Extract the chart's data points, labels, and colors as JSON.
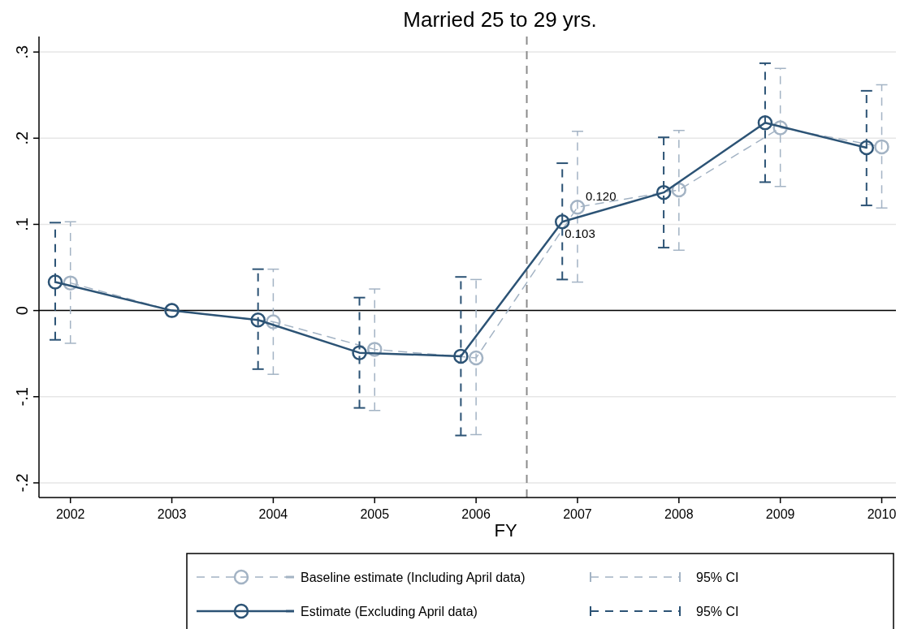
{
  "chart_data": {
    "type": "line",
    "title": "Married 25 to 29 yrs.",
    "xlabel": "FY",
    "xlim": [
      2001.69,
      2010.14
    ],
    "xticks": [
      2002,
      2003,
      2004,
      2005,
      2006,
      2007,
      2008,
      2009,
      2010
    ],
    "ylim": [
      -0.217,
      0.318
    ],
    "yticks": [
      {
        "value": 0.3,
        "label": ".3"
      },
      {
        "value": 0.2,
        "label": ".2"
      },
      {
        "value": 0.1,
        "label": ".1"
      },
      {
        "value": 0,
        "label": "0"
      },
      {
        "value": -0.1,
        "label": "-.1"
      },
      {
        "value": -0.2,
        "label": "-.2"
      }
    ],
    "grid": "y",
    "legend": "bottom",
    "marker": "circle",
    "ref_lines": [
      {
        "axis": "y",
        "value": 0,
        "color": "#000000",
        "line_style": "solid"
      },
      {
        "axis": "x",
        "value": 2006.5,
        "color": "#8c8c8c",
        "line_style": "dashed"
      }
    ],
    "annotations": [
      {
        "text": "0.120",
        "x": 2007,
        "y": 0.12
      },
      {
        "text": "0.103",
        "x": 2006.85,
        "y": 0.103
      },
      "95% CI",
      "95% CI"
    ],
    "series": [
      {
        "name": "Baseline estimate (Including April data)",
        "color": "#a3b3c4",
        "line_style": "dashed",
        "x": [
          2002,
          2003,
          2004,
          2005,
          2006,
          2007,
          2008,
          2009,
          2010
        ],
        "values": [
          0.032,
          0,
          -0.013,
          -0.045,
          -0.055,
          0.12,
          0.14,
          0.212,
          0.19
        ],
        "errors": [
          [
            -0.038,
            0.103
          ],
          null,
          [
            -0.074,
            0.048
          ],
          [
            -0.116,
            0.025
          ],
          [
            -0.144,
            0.036
          ],
          [
            0.033,
            0.208
          ],
          [
            0.07,
            0.209
          ],
          [
            0.144,
            0.281
          ],
          [
            0.119,
            0.262
          ]
        ]
      },
      {
        "name": "Estimate (Excluding April data)",
        "color": "#2c5375",
        "line_style": "solid",
        "x": [
          2001.85,
          2003,
          2003.85,
          2004.85,
          2005.85,
          2006.85,
          2007.85,
          2008.85,
          2009.85
        ],
        "values": [
          0.033,
          0,
          -0.011,
          -0.049,
          -0.053,
          0.103,
          0.137,
          0.218,
          0.189
        ],
        "errors": [
          [
            -0.034,
            0.102
          ],
          null,
          [
            -0.068,
            0.048
          ],
          [
            -0.113,
            0.015
          ],
          [
            -0.145,
            0.039
          ],
          [
            0.036,
            0.171
          ],
          [
            0.073,
            0.201
          ],
          [
            0.149,
            0.287
          ],
          [
            0.122,
            0.255
          ]
        ]
      }
    ]
  }
}
